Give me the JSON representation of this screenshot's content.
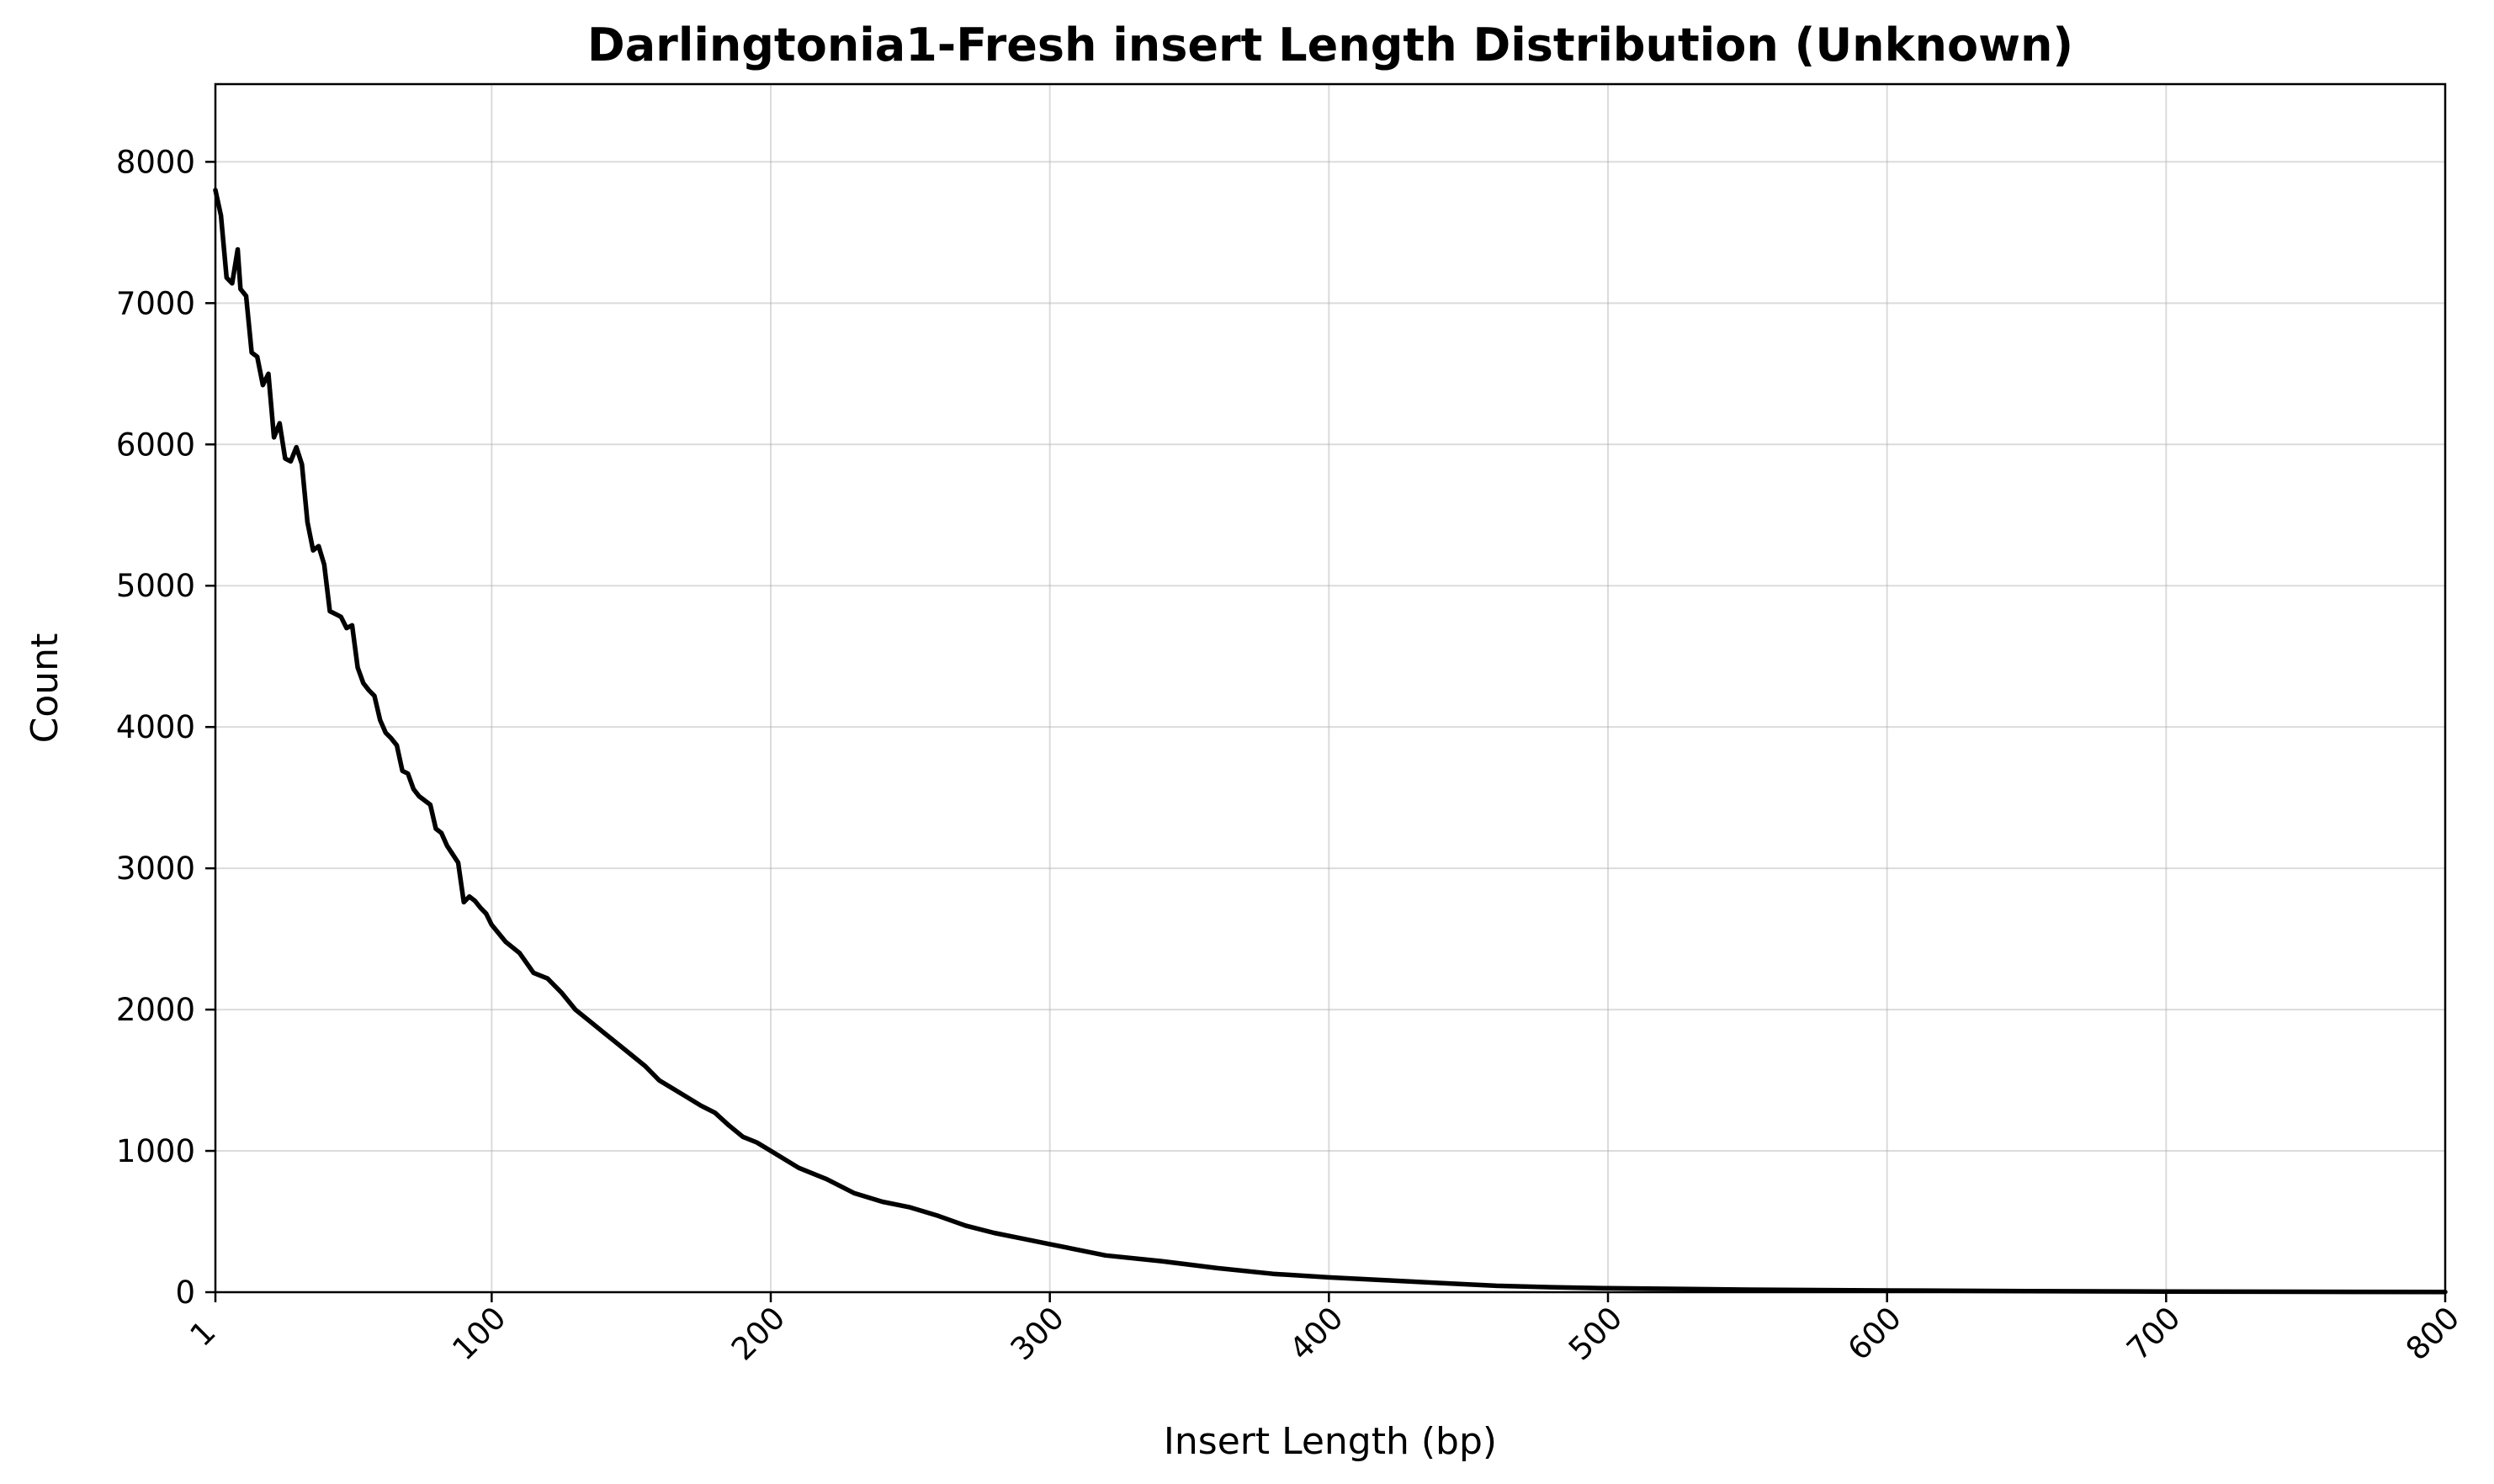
{
  "chart_data": {
    "type": "line",
    "title": "Darlingtonia1-Fresh insert Length Distribution (Unknown)",
    "xlabel": "Insert Length (bp)",
    "ylabel": "Count",
    "xlim": [
      1,
      800
    ],
    "ylim": [
      0,
      8550
    ],
    "x_ticks": [
      1,
      100,
      200,
      300,
      400,
      500,
      600,
      700,
      800
    ],
    "y_ticks": [
      0,
      1000,
      2000,
      3000,
      4000,
      5000,
      6000,
      7000,
      8000
    ],
    "grid": true,
    "legend": "none",
    "series": [
      {
        "color": "#000000",
        "x": [
          1,
          3,
          5,
          7,
          9,
          10,
          12,
          14,
          16,
          18,
          20,
          22,
          24,
          26,
          28,
          30,
          32,
          34,
          36,
          38,
          40,
          42,
          44,
          46,
          48,
          50,
          52,
          54,
          56,
          58,
          60,
          62,
          64,
          66,
          68,
          70,
          72,
          74,
          76,
          78,
          80,
          82,
          84,
          86,
          88,
          90,
          92,
          94,
          96,
          98,
          100,
          105,
          110,
          115,
          120,
          125,
          130,
          135,
          140,
          145,
          150,
          155,
          160,
          165,
          170,
          175,
          180,
          185,
          190,
          195,
          200,
          210,
          220,
          230,
          240,
          250,
          260,
          270,
          280,
          290,
          300,
          320,
          340,
          360,
          380,
          400,
          420,
          440,
          460,
          480,
          500,
          550,
          600,
          650,
          700,
          750,
          800
        ],
        "y": [
          7800,
          7620,
          7180,
          7140,
          7380,
          7100,
          7050,
          6650,
          6620,
          6420,
          6500,
          6050,
          6150,
          5900,
          5880,
          5980,
          5860,
          5450,
          5250,
          5280,
          5150,
          4820,
          4800,
          4780,
          4700,
          4720,
          4420,
          4310,
          4260,
          4220,
          4050,
          3960,
          3920,
          3870,
          3690,
          3670,
          3560,
          3510,
          3480,
          3450,
          3280,
          3250,
          3160,
          3100,
          3040,
          2760,
          2800,
          2770,
          2720,
          2680,
          2600,
          2480,
          2400,
          2260,
          2220,
          2120,
          2000,
          1920,
          1840,
          1760,
          1680,
          1600,
          1500,
          1440,
          1380,
          1320,
          1270,
          1180,
          1100,
          1060,
          1000,
          880,
          800,
          700,
          640,
          600,
          540,
          470,
          420,
          380,
          340,
          260,
          220,
          170,
          130,
          105,
          85,
          65,
          45,
          35,
          28,
          18,
          12,
          8,
          5,
          3,
          2
        ]
      }
    ]
  }
}
